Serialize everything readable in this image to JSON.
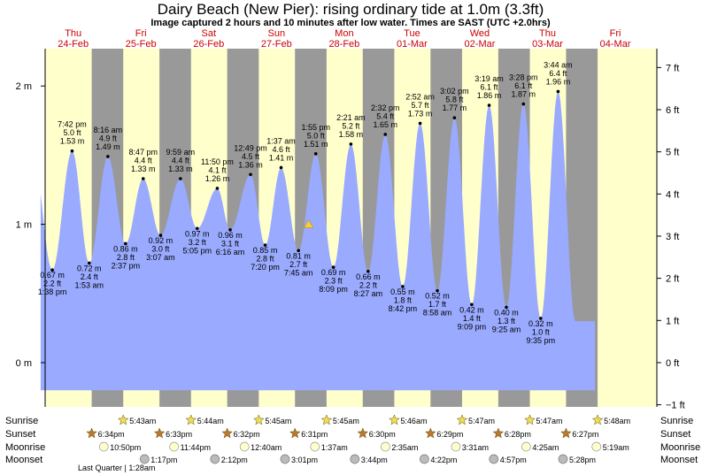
{
  "title": "Dairy Beach (New Pier): rising  ordinary tide at 1.0m (3.3ft)",
  "subtitle": "Image captured 2 hours and 10 minutes after low water. Times are SAST (UTC +2.0hrs)",
  "chart_data": {
    "type": "area",
    "ylim": [
      -0.32,
      2.27
    ],
    "yticks_m": [
      "0 m",
      "1 m",
      "2 m"
    ],
    "yticks_ft": [
      "−1 ft",
      "0 ft",
      "1 ft",
      "2 ft",
      "3 ft",
      "4 ft",
      "5 ft",
      "6 ft",
      "7 ft"
    ],
    "current_level_m": 1.0,
    "days": [
      {
        "dow": "Thu",
        "date": "24-Feb"
      },
      {
        "dow": "Fri",
        "date": "25-Feb"
      },
      {
        "dow": "Sat",
        "date": "26-Feb"
      },
      {
        "dow": "Sun",
        "date": "27-Feb"
      },
      {
        "dow": "Mon",
        "date": "28-Feb"
      },
      {
        "dow": "Tue",
        "date": "01-Mar"
      },
      {
        "dow": "Wed",
        "date": "02-Mar"
      },
      {
        "dow": "Thu",
        "date": "03-Mar"
      },
      {
        "dow": "Fri",
        "date": "04-Mar"
      }
    ],
    "tides": [
      {
        "t": 0.1917,
        "h": 0.67,
        "hl": "low",
        "lines": [
          "0.67 m",
          "2.2 ft",
          "1:38 pm"
        ]
      },
      {
        "t": 0.484,
        "h": 1.53,
        "hl": "high",
        "lines": [
          "7:42 pm",
          "5.0 ft",
          "1.53 m"
        ]
      },
      {
        "t": 0.7368,
        "h": 0.72,
        "hl": "low",
        "lines": [
          "0.72 m",
          "2.4 ft",
          "1:53 am"
        ]
      },
      {
        "t": 1.0118,
        "h": 1.49,
        "hl": "high",
        "lines": [
          "8:16 am",
          "4.9 ft",
          "1.49 m"
        ]
      },
      {
        "t": 1.2729,
        "h": 0.86,
        "hl": "low",
        "lines": [
          "0.86 m",
          "2.8 ft",
          "2:37 pm"
        ]
      },
      {
        "t": 1.5333,
        "h": 1.33,
        "hl": "high",
        "lines": [
          "8:47 pm",
          "4.4 ft",
          "1.33 m"
        ]
      },
      {
        "t": 1.7896,
        "h": 0.92,
        "hl": "low",
        "lines": [
          "0.92 m",
          "3.0 ft",
          "3:07 am"
        ]
      },
      {
        "t": 2.0826,
        "h": 1.33,
        "hl": "high",
        "lines": [
          "9:59 am",
          "4.4 ft",
          "1.33 m"
        ]
      },
      {
        "t": 2.3299,
        "h": 0.97,
        "hl": "low",
        "lines": [
          "0.97 m",
          "3.2 ft",
          "5:05 pm"
        ]
      },
      {
        "t": 2.6264,
        "h": 1.26,
        "hl": "high",
        "lines": [
          "11:50 pm",
          "4.1 ft",
          "1.26 m"
        ]
      },
      {
        "t": 2.8167,
        "h": 0.96,
        "hl": "low",
        "lines": [
          "0.96 m",
          "3.1 ft",
          "6:16 am"
        ]
      },
      {
        "t": 3.1174,
        "h": 1.36,
        "hl": "high",
        "lines": [
          "12:49 pm",
          "4.5 ft",
          "1.36 m"
        ]
      },
      {
        "t": 3.3333,
        "h": 0.85,
        "hl": "low",
        "lines": [
          "0.85 m",
          "2.8 ft",
          "7:20 pm"
        ]
      },
      {
        "t": 3.5681,
        "h": 1.41,
        "hl": "high",
        "lines": [
          "1:37 am",
          "4.6 ft",
          "1.41 m"
        ]
      },
      {
        "t": 3.8243,
        "h": 0.81,
        "hl": "low",
        "lines": [
          "0.81 m",
          "2.7 ft",
          "7:45 am"
        ]
      },
      {
        "t": 4.0799,
        "h": 1.51,
        "hl": "high",
        "lines": [
          "1:55 pm",
          "5.0 ft",
          "1.51 m"
        ]
      },
      {
        "t": 4.3396,
        "h": 0.69,
        "hl": "low",
        "lines": [
          "0.69 m",
          "2.3 ft",
          "8:09 pm"
        ]
      },
      {
        "t": 4.5979,
        "h": 1.58,
        "hl": "high",
        "lines": [
          "2:21 am",
          "5.2 ft",
          "1.58 m"
        ]
      },
      {
        "t": 4.8521,
        "h": 0.66,
        "hl": "low",
        "lines": [
          "0.66 m",
          "2.2 ft",
          "8:27 am"
        ]
      },
      {
        "t": 5.1056,
        "h": 1.65,
        "hl": "high",
        "lines": [
          "2:32 pm",
          "5.4 ft",
          "1.65 m"
        ]
      },
      {
        "t": 5.3625,
        "h": 0.55,
        "hl": "low",
        "lines": [
          "0.55 m",
          "1.8 ft",
          "8:42 pm"
        ]
      },
      {
        "t": 5.6194,
        "h": 1.73,
        "hl": "high",
        "lines": [
          "2:52 am",
          "5.7 ft",
          "1.73 m"
        ]
      },
      {
        "t": 5.8736,
        "h": 0.52,
        "hl": "low",
        "lines": [
          "0.52 m",
          "1.7 ft",
          "8:58 am"
        ]
      },
      {
        "t": 6.1264,
        "h": 1.77,
        "hl": "high",
        "lines": [
          "3:02 pm",
          "5.8 ft",
          "1.77 m"
        ]
      },
      {
        "t": 6.3813,
        "h": 0.42,
        "hl": "low",
        "lines": [
          "0.42 m",
          "1.4 ft",
          "9:09 pm"
        ]
      },
      {
        "t": 6.6382,
        "h": 1.86,
        "hl": "high",
        "lines": [
          "3:19 am",
          "6.1 ft",
          "1.86 m"
        ]
      },
      {
        "t": 6.8924,
        "h": 0.4,
        "hl": "low",
        "lines": [
          "0.40 m",
          "1.3 ft",
          "9:25 am"
        ]
      },
      {
        "t": 7.1444,
        "h": 1.87,
        "hl": "high",
        "lines": [
          "3:28 pm",
          "6.1 ft",
          "1.87 m"
        ]
      },
      {
        "t": 7.3993,
        "h": 0.32,
        "hl": "low",
        "lines": [
          "0.32 m",
          "1.0 ft",
          "9:35 pm"
        ]
      },
      {
        "t": 7.6556,
        "h": 1.96,
        "hl": "high",
        "lines": [
          "3:44 am",
          "6.4 ft",
          "1.96 m"
        ]
      }
    ]
  },
  "rows": {
    "sunrise_label": "Sunrise",
    "sunset_label": "Sunset",
    "moonrise_label": "Moonrise",
    "moonset_label": "Moonset",
    "sunrise": [
      "5:43am",
      "5:44am",
      "5:45am",
      "5:45am",
      "5:46am",
      "5:47am",
      "5:47am",
      "5:48am"
    ],
    "sunset": [
      "6:34pm",
      "6:33pm",
      "6:32pm",
      "6:31pm",
      "6:30pm",
      "6:29pm",
      "6:28pm",
      "6:27pm"
    ],
    "moonrise": [
      "10:50pm",
      "11:44pm",
      "12:40am",
      "1:37am",
      "2:35am",
      "3:31am",
      "4:25am",
      "5:19am"
    ],
    "moonset": [
      "1:17pm",
      "2:12pm",
      "3:01pm",
      "3:44pm",
      "4:22pm",
      "4:57pm",
      "5:28pm"
    ],
    "moon_phase": "Last Quarter | 1:28am"
  },
  "colors": {
    "day": "#ffffcc",
    "night": "#999999",
    "water": "#99aaff",
    "daylabel": "#cc0000",
    "marker": "#ffcc33"
  }
}
